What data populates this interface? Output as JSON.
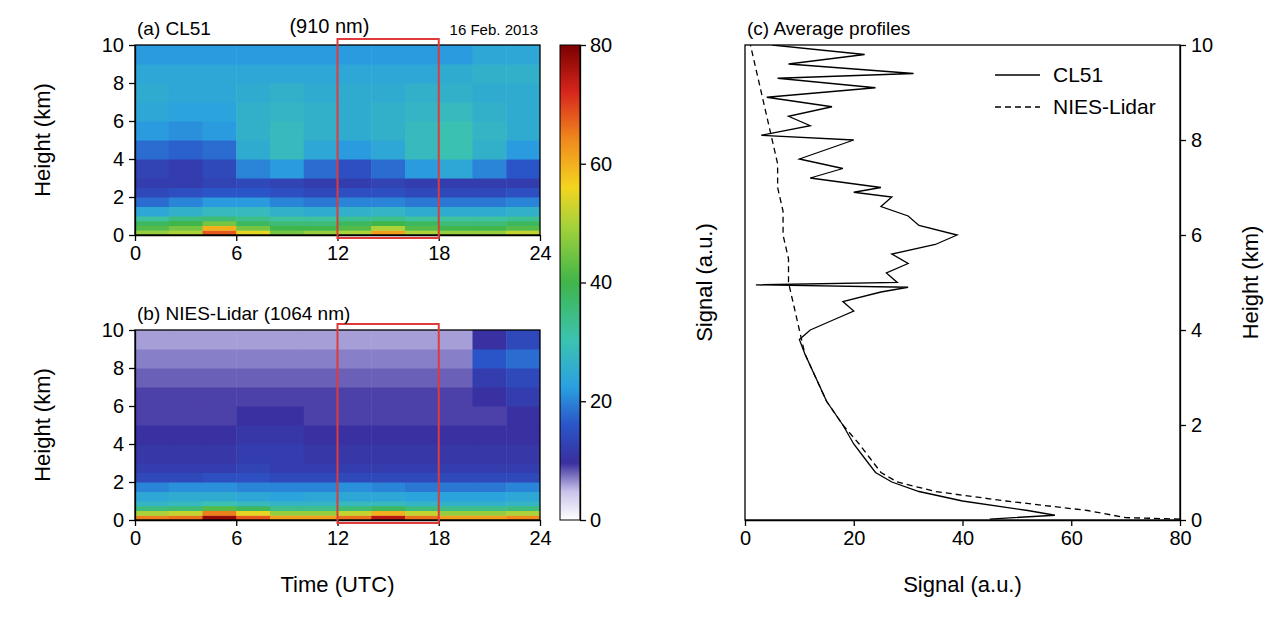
{
  "chart_data": [
    {
      "type": "heatmap",
      "title": "(a) CL51",
      "subtitle": "(910 nm)",
      "annotation": "16 Feb. 2013",
      "y_label": "Height (km)",
      "xlim": [
        0,
        24
      ],
      "xticks": [
        0,
        6,
        12,
        18,
        24
      ],
      "ylim": [
        0,
        10
      ],
      "yticks": [
        0,
        2,
        4,
        6,
        8,
        10
      ],
      "highlight": [
        12,
        18
      ],
      "x_bins": [
        0,
        2,
        4,
        6,
        8,
        10,
        12,
        14,
        16,
        18,
        20,
        22,
        24
      ],
      "y_bins": [
        0,
        0.25,
        0.5,
        0.75,
        1,
        1.5,
        2,
        2.5,
        3,
        4,
        5,
        6,
        7,
        8,
        9,
        10
      ],
      "cells": [
        [
          48,
          50,
          68,
          55,
          45,
          48,
          50,
          62,
          50,
          48,
          48,
          52
        ],
        [
          42,
          45,
          60,
          45,
          40,
          40,
          42,
          50,
          42,
          40,
          40,
          42
        ],
        [
          38,
          40,
          45,
          38,
          36,
          36,
          38,
          40,
          38,
          36,
          36,
          38
        ],
        [
          32,
          35,
          36,
          34,
          32,
          32,
          33,
          34,
          32,
          32,
          32,
          33
        ],
        [
          24,
          26,
          28,
          28,
          26,
          25,
          26,
          27,
          25,
          25,
          25,
          26
        ],
        [
          18,
          20,
          22,
          22,
          20,
          19,
          20,
          20,
          19,
          19,
          19,
          20
        ],
        [
          14,
          15,
          16,
          16,
          15,
          14,
          15,
          15,
          14,
          14,
          14,
          15
        ],
        [
          12,
          12,
          13,
          14,
          13,
          12,
          12,
          13,
          12,
          12,
          12,
          12
        ],
        [
          13,
          12,
          14,
          20,
          22,
          18,
          15,
          18,
          22,
          24,
          20,
          16
        ],
        [
          18,
          17,
          18,
          25,
          28,
          24,
          22,
          24,
          28,
          30,
          26,
          22
        ],
        [
          22,
          21,
          22,
          26,
          28,
          26,
          25,
          26,
          28,
          30,
          27,
          25
        ],
        [
          24,
          23,
          23,
          26,
          27,
          26,
          25,
          26,
          27,
          28,
          26,
          25
        ],
        [
          25,
          24,
          24,
          25,
          26,
          25,
          25,
          25,
          26,
          26,
          25,
          25
        ],
        [
          24,
          24,
          24,
          24,
          24,
          24,
          24,
          24,
          24,
          25,
          26,
          26
        ],
        [
          22,
          22,
          22,
          22,
          22,
          22,
          22,
          22,
          22,
          22,
          24,
          24
        ]
      ]
    },
    {
      "type": "heatmap",
      "title": "(b) NIES-Lidar (1064 nm)",
      "x_label": "Time (UTC)",
      "y_label": "Height (km)",
      "xlim": [
        0,
        24
      ],
      "xticks": [
        0,
        6,
        12,
        18,
        24
      ],
      "ylim": [
        0,
        10
      ],
      "yticks": [
        0,
        2,
        4,
        6,
        8,
        10
      ],
      "highlight": [
        12,
        18
      ],
      "x_bins": [
        0,
        2,
        4,
        6,
        8,
        10,
        12,
        14,
        16,
        18,
        20,
        22,
        24
      ],
      "y_bins": [
        0,
        0.25,
        0.5,
        0.75,
        1,
        1.5,
        2,
        2.5,
        3,
        4,
        5,
        6,
        7,
        8,
        9,
        10
      ],
      "cells": [
        [
          65,
          66,
          78,
          68,
          62,
          62,
          66,
          75,
          66,
          62,
          62,
          64
        ],
        [
          50,
          52,
          65,
          55,
          48,
          48,
          52,
          60,
          52,
          48,
          48,
          50
        ],
        [
          35,
          36,
          42,
          38,
          34,
          34,
          36,
          38,
          35,
          34,
          34,
          35
        ],
        [
          27,
          28,
          30,
          28,
          27,
          27,
          28,
          28,
          27,
          26,
          26,
          27
        ],
        [
          24,
          25,
          25,
          24,
          23,
          24,
          24,
          24,
          23,
          23,
          23,
          24
        ],
        [
          20,
          21,
          21,
          20,
          20,
          20,
          21,
          20,
          19,
          19,
          19,
          20
        ],
        [
          14,
          14,
          15,
          15,
          14,
          14,
          14,
          14,
          14,
          14,
          14,
          14
        ],
        [
          12,
          12,
          12,
          13,
          12,
          12,
          12,
          12,
          12,
          12,
          12,
          12
        ],
        [
          11,
          11,
          11,
          12,
          12,
          11,
          11,
          11,
          11,
          11,
          11,
          11
        ],
        [
          10,
          10,
          10,
          11,
          11,
          10,
          10,
          10,
          10,
          10,
          10,
          10
        ],
        [
          9,
          9,
          9,
          10,
          10,
          9,
          9,
          9,
          9,
          9,
          9,
          10
        ],
        [
          9,
          9,
          9,
          9,
          9,
          9,
          9,
          9,
          9,
          9,
          10,
          12
        ],
        [
          8,
          8,
          8,
          8,
          8,
          8,
          8,
          8,
          8,
          8,
          12,
          14
        ],
        [
          7,
          7,
          7,
          7,
          7,
          7,
          7,
          7,
          7,
          7,
          16,
          18
        ],
        [
          6,
          6,
          6,
          6,
          6,
          6,
          6,
          6,
          6,
          6,
          10,
          14
        ]
      ]
    },
    {
      "type": "line",
      "title": "(c) Average profiles",
      "x_label": "Signal (a.u.)",
      "y_label": "Signal (a.u.)",
      "y2_label": "Height (km)",
      "xlim": [
        0,
        80
      ],
      "xticks": [
        0,
        20,
        40,
        60,
        80
      ],
      "y2lim": [
        0,
        10
      ],
      "y2ticks": [
        0,
        2,
        4,
        6,
        8,
        10
      ],
      "legend": "upper right",
      "series": [
        {
          "name": "CL51",
          "color": "#000000",
          "line_style": "solid",
          "axis": "y2",
          "x": [
            45,
            57,
            52,
            40,
            32,
            27,
            24,
            22,
            20,
            18,
            15,
            13,
            11,
            10,
            12,
            16,
            20,
            18,
            25,
            30,
            2,
            28,
            26,
            30,
            27,
            35,
            39,
            32,
            30,
            25,
            27,
            20,
            25,
            12,
            18,
            10,
            15,
            20,
            3,
            12,
            8,
            16,
            4,
            24,
            6,
            31,
            8,
            22,
            5
          ],
          "values": [
            0.02,
            0.1,
            0.2,
            0.4,
            0.6,
            0.8,
            1.0,
            1.3,
            1.6,
            2.0,
            2.5,
            3.0,
            3.5,
            3.8,
            4.0,
            4.2,
            4.4,
            4.6,
            4.8,
            4.9,
            4.95,
            5.0,
            5.2,
            5.4,
            5.6,
            5.8,
            6.0,
            6.2,
            6.4,
            6.6,
            6.8,
            6.9,
            7.0,
            7.2,
            7.4,
            7.6,
            7.8,
            8.0,
            8.1,
            8.3,
            8.5,
            8.7,
            8.9,
            9.1,
            9.3,
            9.4,
            9.6,
            9.8,
            10.0
          ]
        },
        {
          "name": "NIES-Lidar",
          "color": "#000000",
          "line_style": "dashed",
          "axis": "y2",
          "x": [
            80,
            70,
            63,
            48,
            35,
            28,
            25,
            23,
            21,
            18,
            15,
            13,
            11,
            10,
            9,
            8,
            8,
            7,
            7,
            6,
            6,
            5,
            4,
            3,
            2,
            1
          ],
          "values": [
            0.02,
            0.05,
            0.2,
            0.4,
            0.6,
            0.8,
            1.0,
            1.3,
            1.6,
            2.0,
            2.5,
            3.0,
            3.5,
            4.0,
            4.5,
            5.0,
            5.5,
            6.0,
            6.5,
            7.0,
            7.5,
            8.0,
            8.5,
            9.0,
            9.5,
            10.0
          ]
        }
      ]
    }
  ],
  "colorbar": {
    "range": [
      0,
      80
    ],
    "ticks": [
      0,
      20,
      40,
      60,
      80
    ]
  }
}
